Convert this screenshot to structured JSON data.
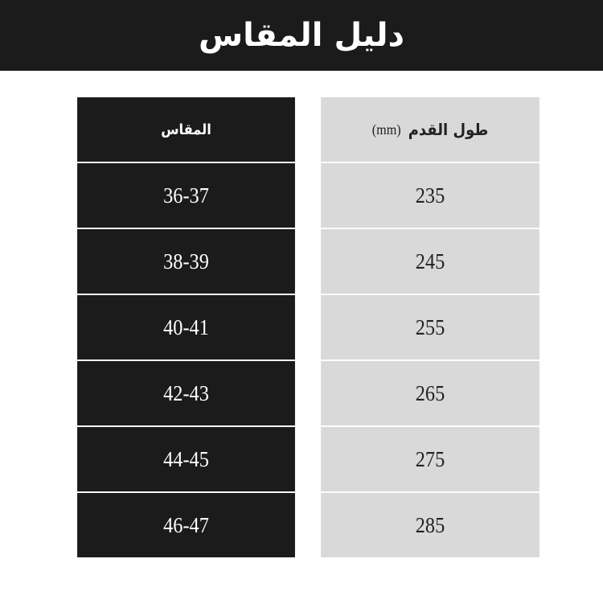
{
  "title": "دليل المقاس",
  "table": {
    "headers": {
      "size": "المقاس",
      "length": "طول القدم",
      "unit": "(mm)"
    },
    "rows": [
      {
        "size": "36-37",
        "length": "235"
      },
      {
        "size": "38-39",
        "length": "245"
      },
      {
        "size": "40-41",
        "length": "255"
      },
      {
        "size": "42-43",
        "length": "265"
      },
      {
        "size": "44-45",
        "length": "275"
      },
      {
        "size": "46-47",
        "length": "285"
      }
    ]
  },
  "colors": {
    "dark": "#1b1b1b",
    "light": "#d9d9d9"
  }
}
